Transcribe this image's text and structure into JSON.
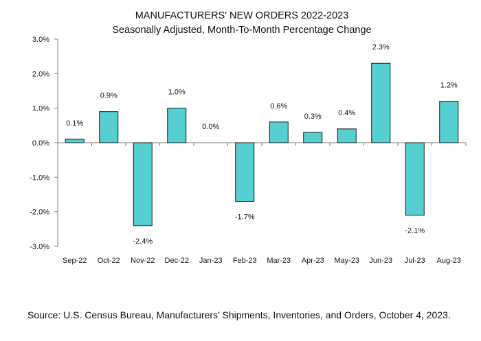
{
  "chart_data": {
    "type": "bar",
    "title": "MANUFACTURERS' NEW ORDERS 2022-2023",
    "subtitle": "Seasonally Adjusted,  Month-To-Month Percentage Change",
    "categories": [
      "Sep-22",
      "Oct-22",
      "Nov-22",
      "Dec-22",
      "Jan-23",
      "Feb-23",
      "Mar-23",
      "Apr-23",
      "May-23",
      "Jun-23",
      "Jul-23",
      "Aug-23"
    ],
    "values": [
      0.1,
      0.9,
      -2.4,
      1.0,
      0.0,
      -1.7,
      0.6,
      0.3,
      0.4,
      2.3,
      -2.1,
      1.2
    ],
    "data_labels": [
      "0.1%",
      "0.9%",
      "-2.4%",
      "1.0%",
      "0.0%",
      "-1.7%",
      "0.6%",
      "0.3%",
      "0.4%",
      "2.3%",
      "-2.1%",
      "1.2%"
    ],
    "ylim": [
      -3.0,
      3.0
    ],
    "yticks": [
      3.0,
      2.0,
      1.0,
      0.0,
      -1.0,
      -2.0,
      -3.0
    ],
    "ytick_labels": [
      "3.0%",
      "2.0%",
      "1.0%",
      "0.0%",
      "-1.0%",
      "-2.0%",
      "-3.0%"
    ],
    "xlabel": "",
    "ylabel": "",
    "grid": false,
    "bar_color": "#55CFCF",
    "bar_edge_color": "#1a1a1a"
  },
  "source": "Source: U.S. Census Bureau, Manufacturers’ Shipments, Inventories, and Orders, October 4, 2023."
}
